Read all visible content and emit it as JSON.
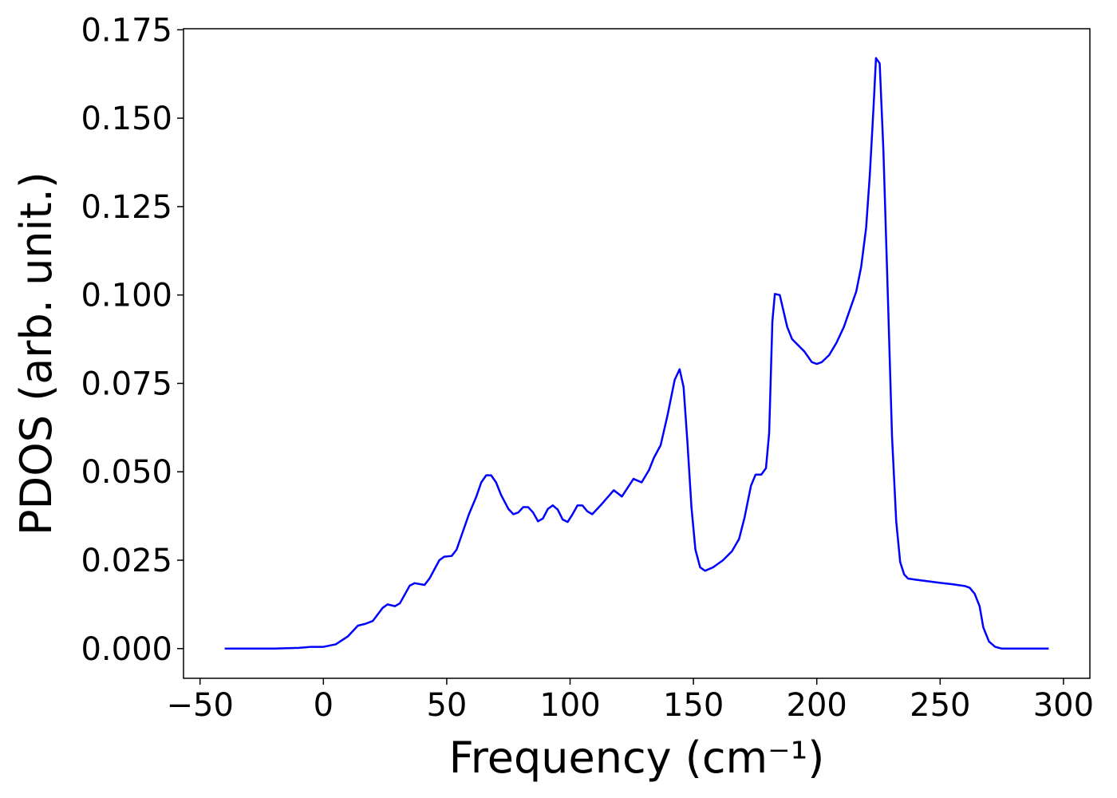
{
  "chart_data": {
    "type": "line",
    "xlabel": "Frequency (cm⁻¹)",
    "ylabel": "PDOS (arb. unit.)",
    "x": [
      -40,
      -20,
      -10,
      -5,
      0,
      5,
      10,
      14,
      17,
      20,
      24,
      26,
      29,
      31,
      35,
      37,
      41,
      43,
      47,
      49,
      52,
      54,
      56,
      59,
      62,
      64,
      66,
      68,
      70,
      72,
      75,
      77,
      79,
      81,
      83,
      85,
      87,
      89,
      91,
      93,
      95,
      97,
      99,
      101,
      103,
      105,
      107,
      109,
      113,
      117.7,
      121,
      125.7,
      129,
      132,
      134,
      136.7,
      139.5,
      142.4,
      144.4,
      146,
      147.6,
      149.2,
      150.8,
      152.7,
      154.7,
      158,
      162,
      165.6,
      168.5,
      170.7,
      173.3,
      175.2,
      177.5,
      179.4,
      180.7,
      182,
      183,
      185,
      188,
      190,
      195,
      198,
      200,
      202,
      205,
      208,
      211,
      214,
      216,
      218,
      220,
      221.5,
      223,
      224,
      225.5,
      227,
      228.8,
      230.5,
      232.2,
      233.8,
      235.4,
      237,
      240,
      250,
      255,
      260,
      262,
      264,
      266,
      267.5,
      269.8,
      272.3,
      275,
      294
    ],
    "series": [
      {
        "color": "#0000ff",
        "values": [
          0,
          0,
          0.0002,
          0.0005,
          0.0005,
          0.0012,
          0.0035,
          0.0065,
          0.007,
          0.0078,
          0.0115,
          0.0125,
          0.012,
          0.0128,
          0.0178,
          0.0185,
          0.018,
          0.0198,
          0.025,
          0.026,
          0.0262,
          0.028,
          0.032,
          0.038,
          0.043,
          0.047,
          0.049,
          0.049,
          0.047,
          0.0435,
          0.0395,
          0.038,
          0.0385,
          0.04,
          0.04,
          0.0385,
          0.036,
          0.0368,
          0.0395,
          0.0405,
          0.0393,
          0.0365,
          0.0358,
          0.038,
          0.0405,
          0.0405,
          0.0388,
          0.038,
          0.041,
          0.0448,
          0.043,
          0.048,
          0.047,
          0.0505,
          0.054,
          0.0575,
          0.066,
          0.076,
          0.079,
          0.074,
          0.058,
          0.04,
          0.028,
          0.023,
          0.022,
          0.023,
          0.025,
          0.0275,
          0.031,
          0.037,
          0.046,
          0.0492,
          0.0492,
          0.051,
          0.061,
          0.0925,
          0.1003,
          0.1,
          0.091,
          0.0875,
          0.084,
          0.081,
          0.0805,
          0.081,
          0.083,
          0.0865,
          0.091,
          0.097,
          0.101,
          0.108,
          0.119,
          0.134,
          0.153,
          0.167,
          0.1655,
          0.141,
          0.1,
          0.06,
          0.036,
          0.0245,
          0.021,
          0.0198,
          0.0195,
          0.0186,
          0.0182,
          0.0177,
          0.0172,
          0.0155,
          0.012,
          0.006,
          0.002,
          0.0005,
          0,
          0
        ]
      }
    ],
    "xlim": [
      -56.7,
      310.7
    ],
    "ylim": [
      -0.0084,
      0.1753
    ],
    "xticks": [
      {
        "value": -50,
        "label": "−50"
      },
      0,
      50,
      100,
      150,
      200,
      250,
      300
    ],
    "yticks": [
      {
        "value": 0,
        "label": "0.000"
      },
      {
        "value": 0.025,
        "label": "0.025"
      },
      {
        "value": 0.05,
        "label": "0.050"
      },
      {
        "value": 0.075,
        "label": "0.075"
      },
      {
        "value": 0.1,
        "label": "0.100"
      },
      {
        "value": 0.125,
        "label": "0.125"
      },
      {
        "value": 0.15,
        "label": "0.150"
      },
      {
        "value": 0.175,
        "label": "0.175"
      }
    ]
  }
}
